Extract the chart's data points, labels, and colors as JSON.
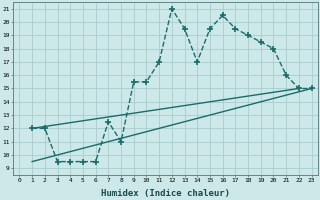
{
  "title": "",
  "xlabel": "Humidex (Indice chaleur)",
  "xlim": [
    -0.5,
    23.5
  ],
  "ylim": [
    8.5,
    21.5
  ],
  "yticks": [
    9,
    10,
    11,
    12,
    13,
    14,
    15,
    16,
    17,
    18,
    19,
    20,
    21
  ],
  "xticks": [
    0,
    1,
    2,
    3,
    4,
    5,
    6,
    7,
    8,
    9,
    10,
    11,
    12,
    13,
    14,
    15,
    16,
    17,
    18,
    19,
    20,
    21,
    22,
    23
  ],
  "bg_color": "#cce8e8",
  "line_color": "#1a6b6b",
  "grid_color": "#aacccc",
  "line1_x": [
    1,
    2,
    3,
    4,
    5,
    6,
    7,
    8,
    9,
    10,
    11,
    12,
    13,
    14,
    15,
    16,
    17,
    18,
    19,
    20,
    21,
    22,
    23
  ],
  "line1_y": [
    12,
    12,
    9.5,
    9.5,
    9.5,
    9.5,
    12.5,
    11.0,
    15.5,
    15.5,
    17.0,
    21.0,
    19.5,
    17.0,
    19.5,
    20.5,
    19.5,
    19.0,
    18.5,
    18.0,
    16.0,
    15.0,
    15.0
  ],
  "line2_x": [
    1,
    22
  ],
  "line2_y": [
    12,
    15
  ],
  "line3_x": [
    1,
    23
  ],
  "line3_y": [
    9.5,
    15.0
  ]
}
